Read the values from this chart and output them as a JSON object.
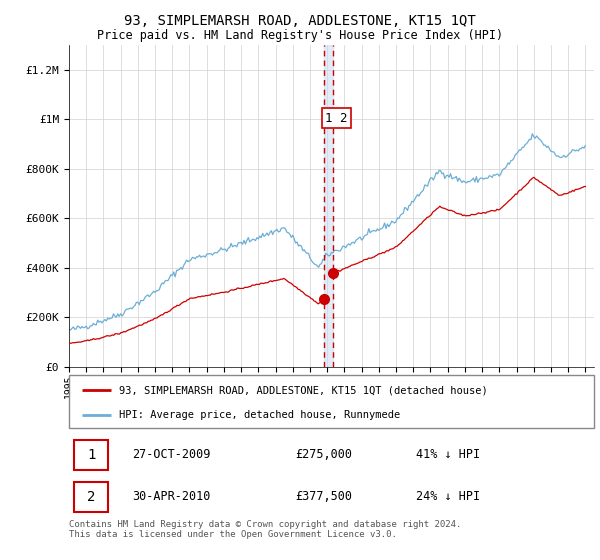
{
  "title": "93, SIMPLEMARSH ROAD, ADDLESTONE, KT15 1QT",
  "subtitle": "Price paid vs. HM Land Registry's House Price Index (HPI)",
  "hpi_label": "HPI: Average price, detached house, Runnymede",
  "property_label": "93, SIMPLEMARSH ROAD, ADDLESTONE, KT15 1QT (detached house)",
  "hpi_color": "#6baed6",
  "property_color": "#cc0000",
  "vline_color": "#cc0000",
  "ylim": [
    0,
    1300000
  ],
  "yticks": [
    0,
    200000,
    400000,
    600000,
    800000,
    1000000,
    1200000
  ],
  "ytick_labels": [
    "£0",
    "£200K",
    "£400K",
    "£600K",
    "£800K",
    "£1M",
    "£1.2M"
  ],
  "sale1_x": 2009.82,
  "sale1_price": 275000,
  "sale1_date": "27-OCT-2009",
  "sale1_pct": "41%",
  "sale2_x": 2010.33,
  "sale2_price": 377500,
  "sale2_date": "30-APR-2010",
  "sale2_pct": "24%",
  "footnote": "Contains HM Land Registry data © Crown copyright and database right 2024.\nThis data is licensed under the Open Government Licence v3.0.",
  "background_color": "#ffffff",
  "grid_color": "#d0d0d0"
}
